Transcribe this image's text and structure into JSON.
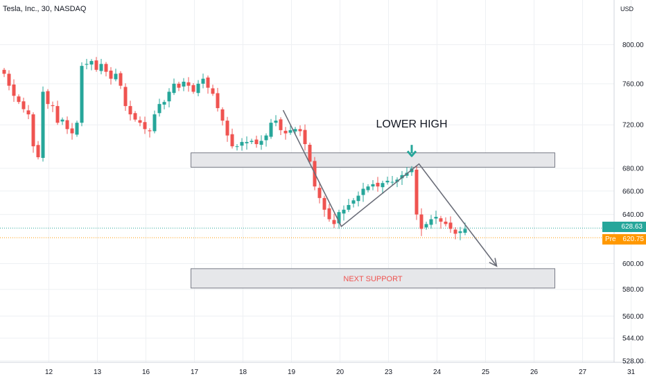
{
  "header": {
    "symbol_title": "Tesla, Inc., 30, NASDAQ",
    "currency": "USD"
  },
  "price_tags": {
    "last_price": "628.63",
    "pre_label": "Pre",
    "pre_price": "620.75"
  },
  "colors": {
    "up": "#26a69a",
    "down": "#ef5350",
    "zone_fill": "#e6e7ea",
    "zone_stroke": "#787b86",
    "trend_line": "#6a6d78",
    "last_line": "#26a69a",
    "pre_line": "#ff9800",
    "grid": "#eef0f3",
    "annotation_text": "#131722",
    "support_text": "#ef5350"
  },
  "chart_data": {
    "type": "candlestick",
    "title": "Tesla, Inc., 30, NASDAQ",
    "xlabel": "",
    "ylabel": "USD",
    "grid": true,
    "y_scale": "log",
    "ylim": [
      526,
      852
    ],
    "y_ticks": [
      800,
      760,
      720,
      680,
      660,
      640,
      600,
      580,
      560,
      544,
      528
    ],
    "y_tick_labels": [
      "800.00",
      "760.00",
      "720.00",
      "680.00",
      "660.00",
      "640.00",
      "600.00",
      "580.00",
      "560.00",
      "544.00",
      "528.00"
    ],
    "x_ticks": [
      {
        "label": "12",
        "bar": 5
      },
      {
        "label": "13",
        "bar": 15
      },
      {
        "label": "16",
        "bar": 25
      },
      {
        "label": "17",
        "bar": 35
      },
      {
        "label": "18",
        "bar": 45
      },
      {
        "label": "19",
        "bar": 55
      },
      {
        "label": "20",
        "bar": 65
      },
      {
        "label": "23",
        "bar": 75
      },
      {
        "label": "24",
        "bar": 85
      },
      {
        "label": "25",
        "bar": 95
      },
      {
        "label": "26",
        "bar": 105
      },
      {
        "label": "27",
        "bar": 115
      },
      {
        "label": "31",
        "bar": 125
      }
    ],
    "bars_per_day": 10,
    "close_series": [
      770,
      758,
      748,
      742,
      735,
      730,
      700,
      690,
      752,
      740,
      738,
      722,
      725,
      716,
      712,
      722,
      778,
      780,
      783,
      774,
      780,
      772,
      765,
      770,
      758,
      738,
      730,
      725,
      722,
      716,
      714,
      730,
      740,
      742,
      752,
      760,
      756,
      762,
      758,
      752,
      760,
      765,
      756,
      750,
      736,
      724,
      710,
      700,
      700,
      704,
      704,
      705,
      702,
      705,
      710,
      722,
      724,
      715,
      712,
      715,
      716,
      714,
      702,
      686,
      664,
      654,
      644,
      636,
      632,
      642,
      644,
      648,
      652,
      656,
      662,
      664,
      666,
      664,
      667,
      669,
      668,
      670,
      674,
      676,
      680,
      640,
      628,
      632,
      636,
      638,
      634,
      632,
      628,
      624,
      626,
      628
    ],
    "annotations": [
      {
        "text": "LOWER HIGH",
        "kind": "label"
      },
      {
        "text": "NEXT SUPPORT",
        "kind": "zone-label"
      }
    ],
    "resistance_zone": {
      "top": 694,
      "bottom": 681,
      "from_bar": 39,
      "to_bar": 114
    },
    "support_zone": {
      "top": 596,
      "bottom": 581,
      "from_bar": 39,
      "to_bar": 114
    },
    "trend_path": [
      {
        "bar": 58,
        "price": 734
      },
      {
        "bar": 70,
        "price": 630
      },
      {
        "bar": 86,
        "price": 684
      },
      {
        "bar": 102,
        "price": 598
      }
    ],
    "lower_high_marker": {
      "bar": 84.5,
      "price": 688
    },
    "last_price": 628.63,
    "pre_price": 620.75
  }
}
